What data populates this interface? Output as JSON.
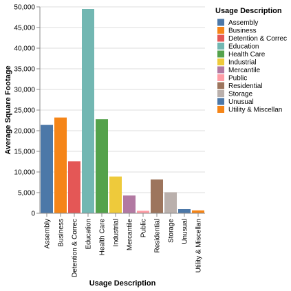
{
  "chart_data": {
    "type": "bar",
    "xlabel": "Usage Description",
    "ylabel": "Average Square Footage",
    "ylim": [
      0,
      50000
    ],
    "yticks": [
      0,
      5000,
      10000,
      15000,
      20000,
      25000,
      30000,
      35000,
      40000,
      45000,
      50000
    ],
    "ytick_labels": [
      "0",
      "5,000",
      "10,000",
      "15,000",
      "20,000",
      "25,000",
      "30,000",
      "35,000",
      "40,000",
      "45,000",
      "50,000"
    ],
    "grid": true,
    "legend": {
      "title": "Usage Description",
      "placement": "right"
    },
    "categories": [
      "Assembly",
      "Business",
      "Detention & Correc",
      "Education",
      "Health Care",
      "Industrial",
      "Mercantile",
      "Public",
      "Residential",
      "Storage",
      "Unusual",
      "Utility & Miscellan"
    ],
    "values": [
      21400,
      23200,
      12600,
      49500,
      22800,
      8900,
      4300,
      600,
      8200,
      5100,
      1000,
      700
    ],
    "colors": [
      "#4c78a8",
      "#f58518",
      "#e45756",
      "#72b7b2",
      "#54a24b",
      "#eeca3b",
      "#b279a2",
      "#ff9da6",
      "#9d755d",
      "#bab0ac",
      "#4c78a8",
      "#f58518"
    ]
  }
}
